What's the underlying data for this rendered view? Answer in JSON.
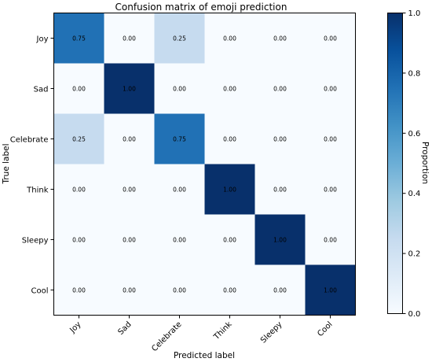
{
  "chart_data": {
    "type": "heatmap",
    "title": "Confusion matrix of emoji prediction",
    "xlabel": "Predicted label",
    "ylabel": "True label",
    "x_categories": [
      "Joy",
      "Sad",
      "Celebrate",
      "Think",
      "Sleepy",
      "Cool"
    ],
    "y_categories": [
      "Joy",
      "Sad",
      "Celebrate",
      "Think",
      "Sleepy",
      "Cool"
    ],
    "values": [
      [
        0.75,
        0.0,
        0.25,
        0.0,
        0.0,
        0.0
      ],
      [
        0.0,
        1.0,
        0.0,
        0.0,
        0.0,
        0.0
      ],
      [
        0.25,
        0.0,
        0.75,
        0.0,
        0.0,
        0.0
      ],
      [
        0.0,
        0.0,
        0.0,
        1.0,
        0.0,
        0.0
      ],
      [
        0.0,
        0.0,
        0.0,
        0.0,
        1.0,
        0.0
      ],
      [
        0.0,
        0.0,
        0.0,
        0.0,
        0.0,
        1.0
      ]
    ],
    "value_labels": [
      [
        "0.75",
        "0.00",
        "0.25",
        "0.00",
        "0.00",
        "0.00"
      ],
      [
        "0.00",
        "1.00",
        "0.00",
        "0.00",
        "0.00",
        "0.00"
      ],
      [
        "0.25",
        "0.00",
        "0.75",
        "0.00",
        "0.00",
        "0.00"
      ],
      [
        "0.00",
        "0.00",
        "0.00",
        "1.00",
        "0.00",
        "0.00"
      ],
      [
        "0.00",
        "0.00",
        "0.00",
        "0.00",
        "1.00",
        "0.00"
      ],
      [
        "0.00",
        "0.00",
        "0.00",
        "0.00",
        "0.00",
        "1.00"
      ]
    ],
    "colorbar": {
      "label": "Proportion",
      "range": [
        0,
        1
      ],
      "ticks": [
        0.0,
        0.2,
        0.4,
        0.6,
        0.8,
        1.0
      ],
      "tick_labels": [
        "0.0",
        "0.2",
        "0.4",
        "0.6",
        "0.8",
        "1.0"
      ]
    },
    "colormap": "Blues",
    "colormap_stops": [
      "#f7fbff",
      "#deebf7",
      "#c6dbef",
      "#9ecae1",
      "#6baed6",
      "#4292c6",
      "#2171b5",
      "#08519c",
      "#08306b"
    ],
    "grid": false
  }
}
